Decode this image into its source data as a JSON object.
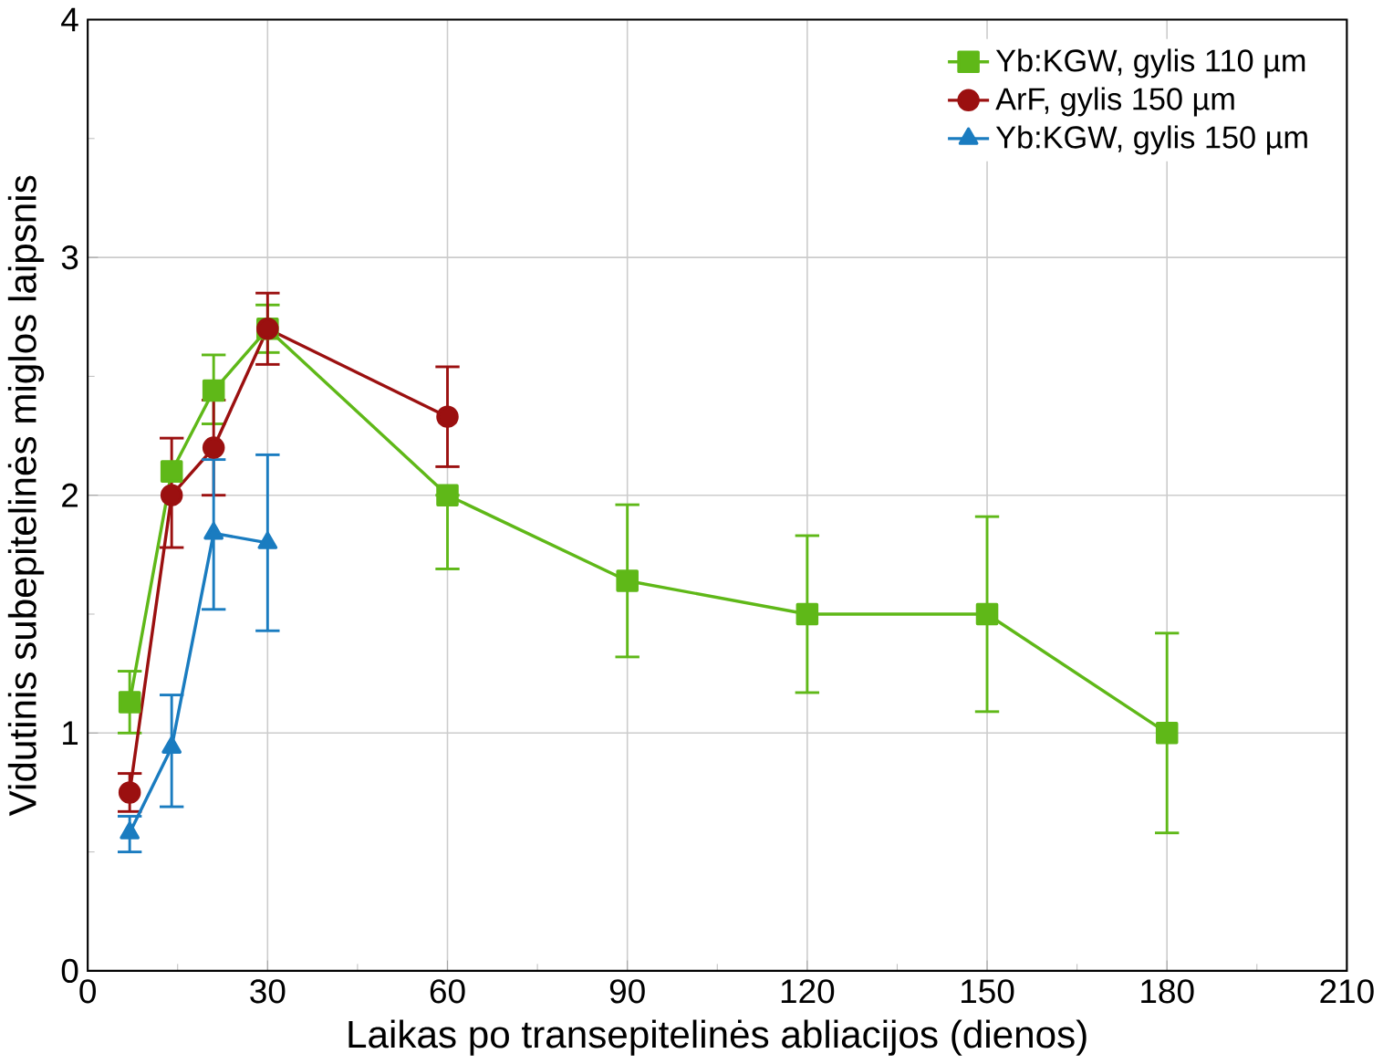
{
  "chart_data": {
    "type": "line",
    "xlabel": "Laikas po transepitelinės abliacijos (dienos)",
    "ylabel": "Vidutinis subepitelinės miglos laipsnis",
    "xlim": [
      0,
      210
    ],
    "xticks": [
      0,
      30,
      60,
      90,
      120,
      150,
      180,
      210
    ],
    "ylim": [
      0,
      4
    ],
    "yticks": [
      0,
      1,
      2,
      3,
      4
    ],
    "grid": true,
    "legend": "top right",
    "series": [
      {
        "name": "Yb:KGW, gylis 110 µm",
        "color": "#5fb818",
        "marker": "square",
        "x": [
          7,
          14,
          21,
          30,
          60,
          90,
          120,
          150,
          180
        ],
        "values": [
          1.13,
          2.1,
          2.44,
          2.7,
          2.0,
          1.64,
          1.5,
          1.5,
          1.0
        ],
        "errors": [
          [
            1.0,
            1.26
          ],
          null,
          [
            2.3,
            2.59
          ],
          [
            2.6,
            2.8
          ],
          [
            1.69,
            2.0
          ],
          [
            1.32,
            1.96
          ],
          [
            1.17,
            1.83
          ],
          [
            1.09,
            1.91
          ],
          [
            0.58,
            1.42
          ]
        ]
      },
      {
        "name": "ArF, gylis 150 µm",
        "color": "#9b1010",
        "marker": "circle",
        "x": [
          7,
          14,
          21,
          30,
          60
        ],
        "values": [
          0.75,
          2.0,
          2.2,
          2.7,
          2.33
        ],
        "errors": [
          [
            0.67,
            0.83
          ],
          [
            1.78,
            2.24
          ],
          [
            2.0,
            2.4
          ],
          [
            2.55,
            2.85
          ],
          [
            2.12,
            2.54
          ]
        ]
      },
      {
        "name": "Yb:KGW, gylis 150 µm",
        "color": "#1a7cc0",
        "marker": "triangle",
        "x": [
          7,
          14,
          21,
          30
        ],
        "values": [
          0.58,
          0.94,
          1.84,
          1.8
        ],
        "errors": [
          [
            0.5,
            0.65
          ],
          [
            0.69,
            1.16
          ],
          [
            1.52,
            2.15
          ],
          [
            1.43,
            2.17
          ]
        ]
      }
    ]
  }
}
